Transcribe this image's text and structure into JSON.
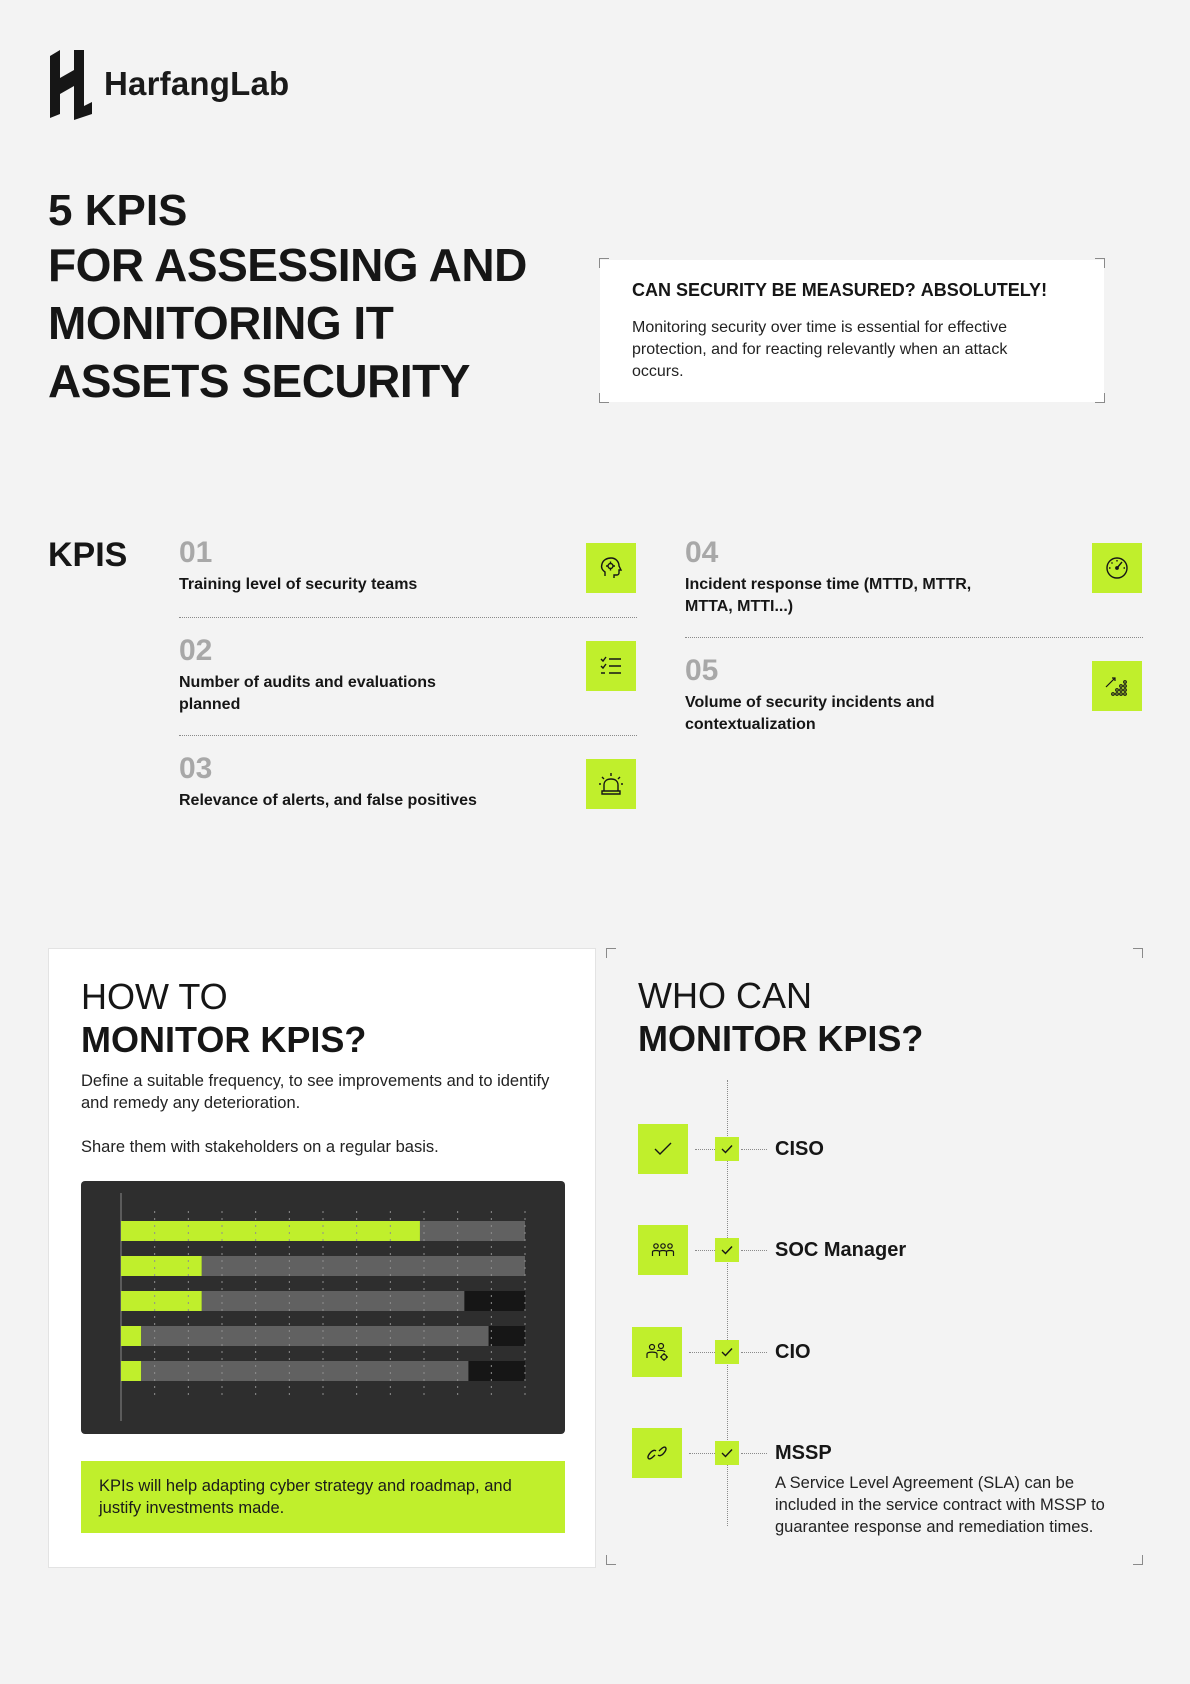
{
  "brand": {
    "name": "HarfangLab",
    "logo_icon": "harfanglab-logo-icon"
  },
  "title": {
    "line1": "5 KPIS",
    "line2": "FOR ASSESSING AND",
    "line3": "MONITORING IT",
    "line4": "ASSETS SECURITY"
  },
  "measure": {
    "question": "CAN SECURITY BE MEASURED?",
    "answer": "ABSOLUTELY!",
    "text": "Monitoring security over time is essential for effective protection, and for reacting relevantly when an attack occurs."
  },
  "kpis": {
    "label": "KPIS",
    "items": [
      {
        "num": "01",
        "text": "Training level of security teams",
        "icon": "brain-gear-icon"
      },
      {
        "num": "02",
        "text": "Number of audits and evaluations planned",
        "icon": "checklist-icon"
      },
      {
        "num": "03",
        "text": "Relevance of alerts, and false positives",
        "icon": "alarm-siren-icon"
      },
      {
        "num": "04",
        "text": "Incident response time (MTTD, MTTR, MTTA, MTTI...)",
        "icon": "speedometer-icon"
      },
      {
        "num": "05",
        "text": "Volume of security incidents and contextualization",
        "icon": "trend-dots-icon"
      }
    ]
  },
  "how": {
    "title_line1": "HOW TO",
    "title_line2": "MONITOR KPIS?",
    "p1": "Define a suitable frequency, to see improvements and to identify and remedy any deterioration.",
    "p2": "Share them with stakeholders on a regular basis.",
    "callout": "KPIs will help adapting cyber strategy and roadmap, and justify investments made."
  },
  "chart_data": {
    "type": "bar",
    "orientation": "horizontal",
    "stacked": true,
    "series": [
      {
        "values": [
          74,
          20,
          20,
          5,
          5
        ]
      },
      {
        "values": [
          26,
          80,
          65,
          86,
          81
        ]
      },
      {
        "values": [
          0,
          0,
          15,
          9,
          14
        ]
      }
    ],
    "colors": [
      "#c0ef2c",
      "#616161",
      "#161616"
    ],
    "xlim": [
      0,
      100
    ],
    "grid": true
  },
  "who": {
    "title_line1": "WHO CAN",
    "title_line2": "MONITOR KPIS?",
    "roles": [
      {
        "name": "CISO",
        "icon": "shield-check-icon"
      },
      {
        "name": "SOC Manager",
        "icon": "team-icon"
      },
      {
        "name": "CIO",
        "icon": "people-gear-icon"
      },
      {
        "name": "MSSP",
        "icon": "link-icon",
        "desc": "A Service Level Agreement (SLA) can be included in the service contract with MSSP to guarantee response and remediation times."
      }
    ]
  },
  "colors": {
    "accent": "#c0ef2c",
    "dark": "#161616",
    "background": "#f3f3f3",
    "muted": "#a8a8a8"
  }
}
